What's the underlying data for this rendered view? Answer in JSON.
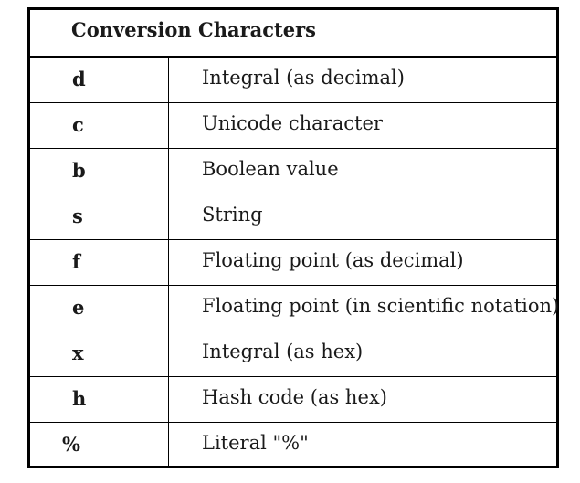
{
  "table": {
    "title": "Conversion Characters",
    "rows": [
      {
        "code": "d",
        "description": "Integral (as decimal)"
      },
      {
        "code": "c",
        "description": "Unicode character"
      },
      {
        "code": "b",
        "description": "Boolean value"
      },
      {
        "code": "s",
        "description": "String"
      },
      {
        "code": "f",
        "description": "Floating point (as decimal)"
      },
      {
        "code": "e",
        "description": "Floating point (in scientific notation)"
      },
      {
        "code": "x",
        "description": "Integral (as hex)"
      },
      {
        "code": "h",
        "description": "Hash code (as hex)"
      },
      {
        "code": "%",
        "description": "Literal \"%\""
      }
    ]
  }
}
